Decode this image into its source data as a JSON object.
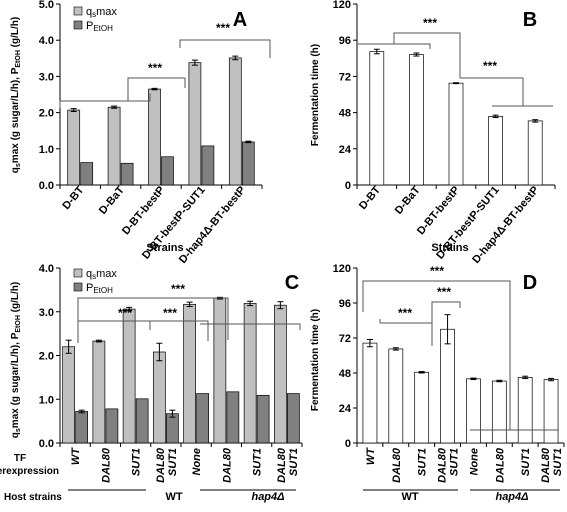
{
  "chart_data": [
    {
      "panel": "A",
      "type": "bar",
      "ylabel": "qsmax (g sugar/L/h), PEtOH (g/L/h)",
      "xlabel": "Strains",
      "ylim": [
        0,
        5.0
      ],
      "yticks": [
        "0.0",
        "1.0",
        "2.0",
        "3.0",
        "4.0",
        "5.0"
      ],
      "categories": [
        "D-BT",
        "D-BaT",
        "D-BT-bestP",
        "D-BT-bestP-SUT1",
        "D-hap4Δ-BT-bestP"
      ],
      "series": [
        {
          "name": "qsmax",
          "color": "#c0c0c0",
          "values": [
            2.07,
            2.15,
            2.65,
            3.38,
            3.51
          ],
          "errors": [
            0.04,
            0.03,
            0.02,
            0.07,
            0.05
          ]
        },
        {
          "name": "PEtOH",
          "color": "#808080",
          "values": [
            0.62,
            0.6,
            0.78,
            1.08,
            1.19
          ],
          "errors": [
            0,
            0,
            0,
            0,
            0.02
          ]
        }
      ],
      "significance": [
        "***",
        "***"
      ]
    },
    {
      "panel": "B",
      "type": "bar",
      "ylabel": "Fermentation time (h)",
      "xlabel": "Strains",
      "ylim": [
        0,
        120
      ],
      "yticks": [
        "0",
        "24",
        "48",
        "72",
        "96",
        "120"
      ],
      "categories": [
        "D-BT",
        "D-BaT",
        "D-BT-bestP",
        "D-BT-bestP-SUT1",
        "D-hap4Δ-BT-bestP"
      ],
      "series": [
        {
          "color": "#ffffff",
          "values": [
            88.5,
            86.5,
            67.5,
            45.5,
            42.5
          ],
          "errors": [
            1.5,
            1.0,
            0.3,
            0.8,
            0.8
          ]
        }
      ],
      "significance": [
        "***",
        "***"
      ]
    },
    {
      "panel": "C",
      "type": "bar",
      "ylabel": "qsmax (g sugar/L/h), PEtOH (g/L/h)",
      "ylim": [
        0,
        4.0
      ],
      "yticks": [
        "0.0",
        "1.0",
        "2.0",
        "3.0",
        "4.0"
      ],
      "categories": [
        "WT",
        "DAL80",
        "SUT1",
        "DAL80 SUT1",
        "None",
        "DAL80",
        "SUT1",
        "DAL80 SUT1"
      ],
      "series": [
        {
          "name": "qsmax",
          "color": "#c0c0c0",
          "values": [
            2.2,
            2.33,
            3.06,
            2.08,
            3.17,
            3.31,
            3.19,
            3.15
          ],
          "errors": [
            0.15,
            0.02,
            0.04,
            0.2,
            0.05,
            0.02,
            0.05,
            0.08
          ]
        },
        {
          "name": "PEtOH",
          "color": "#808080",
          "values": [
            0.72,
            0.78,
            1.01,
            0.67,
            1.13,
            1.17,
            1.09,
            1.13
          ],
          "errors": [
            0.03,
            0,
            0,
            0.08,
            0,
            0,
            0,
            0
          ]
        }
      ],
      "significance": [
        "***",
        "***",
        "***"
      ],
      "tf_label": "TF overexpression",
      "host_label": "Host strains",
      "host_groups": [
        "WT",
        "hap4Δ"
      ]
    },
    {
      "panel": "D",
      "type": "bar",
      "ylabel": "Fermentation time (h)",
      "ylim": [
        0,
        120
      ],
      "yticks": [
        "0",
        "24",
        "48",
        "72",
        "96",
        "120"
      ],
      "categories": [
        "WT",
        "DAL80",
        "SUT1",
        "DAL80 SUT1",
        "None",
        "DAL80",
        "SUT1",
        "DAL80 SUT1"
      ],
      "series": [
        {
          "color": "#ffffff",
          "values": [
            68.5,
            64.5,
            48.5,
            78.0,
            44.0,
            42.5,
            45.0,
            43.5
          ],
          "errors": [
            2.5,
            0.8,
            0.5,
            10.0,
            0.5,
            0.5,
            0.8,
            0.8
          ]
        }
      ],
      "significance": [
        "***",
        "***",
        "***"
      ],
      "host_groups": [
        "WT",
        "hap4Δ"
      ]
    }
  ]
}
